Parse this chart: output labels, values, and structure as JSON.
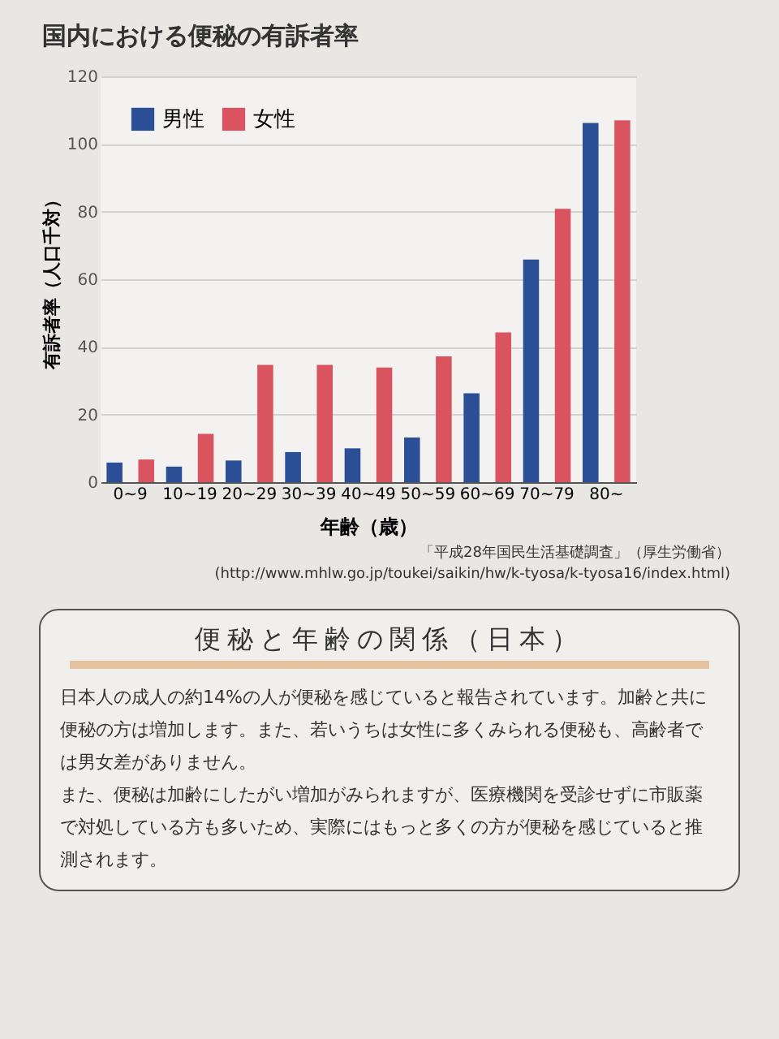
{
  "chart_data": {
    "type": "bar",
    "title": "国内における便秘の有訴者率",
    "xlabel": "年齢（歳）",
    "ylabel": "有訴者率（人口千対）",
    "categories": [
      "0~9",
      "10~19",
      "20~29",
      "30~39",
      "40~49",
      "50~59",
      "60~69",
      "70~79",
      "80~"
    ],
    "series": [
      {
        "name": "男性",
        "color": "#2a4f96",
        "values": [
          5.8,
          4.6,
          6.4,
          8.9,
          10,
          13.2,
          26.3,
          65.8,
          106.2
        ]
      },
      {
        "name": "女性",
        "color": "#d9545f",
        "values": [
          6.7,
          14.3,
          34.7,
          34.7,
          33.9,
          37.2,
          44.3,
          80.8,
          107
        ]
      }
    ],
    "ylim": [
      0,
      120
    ],
    "yticks": [
      0,
      20,
      40,
      60,
      80,
      100,
      120
    ],
    "grid": "y",
    "legend": "top left",
    "annotations": [
      "「平成28年国民生活基礎調査」（厚生労働省）",
      "(http://www.mhlw.go.jp/toukei/saikin/hw/k-tyosa/k-tyosa16/index.html)",
      "便秘と年齢の関係（日本）",
      "日本人の成人の約14%の人が便秘を感じていると報告されています。加齢と共に便秘の方は増加します。また、若いうちは女性に多くみられる便秘も、高齢者では男女差がありません。",
      "また、便秘は加齢にしたがい増加がみられますが、医療機関を受診せずに市販薬で対処している方も多いため、実際にはもっと多くの方が便秘を感じていると推測されます。"
    ]
  }
}
